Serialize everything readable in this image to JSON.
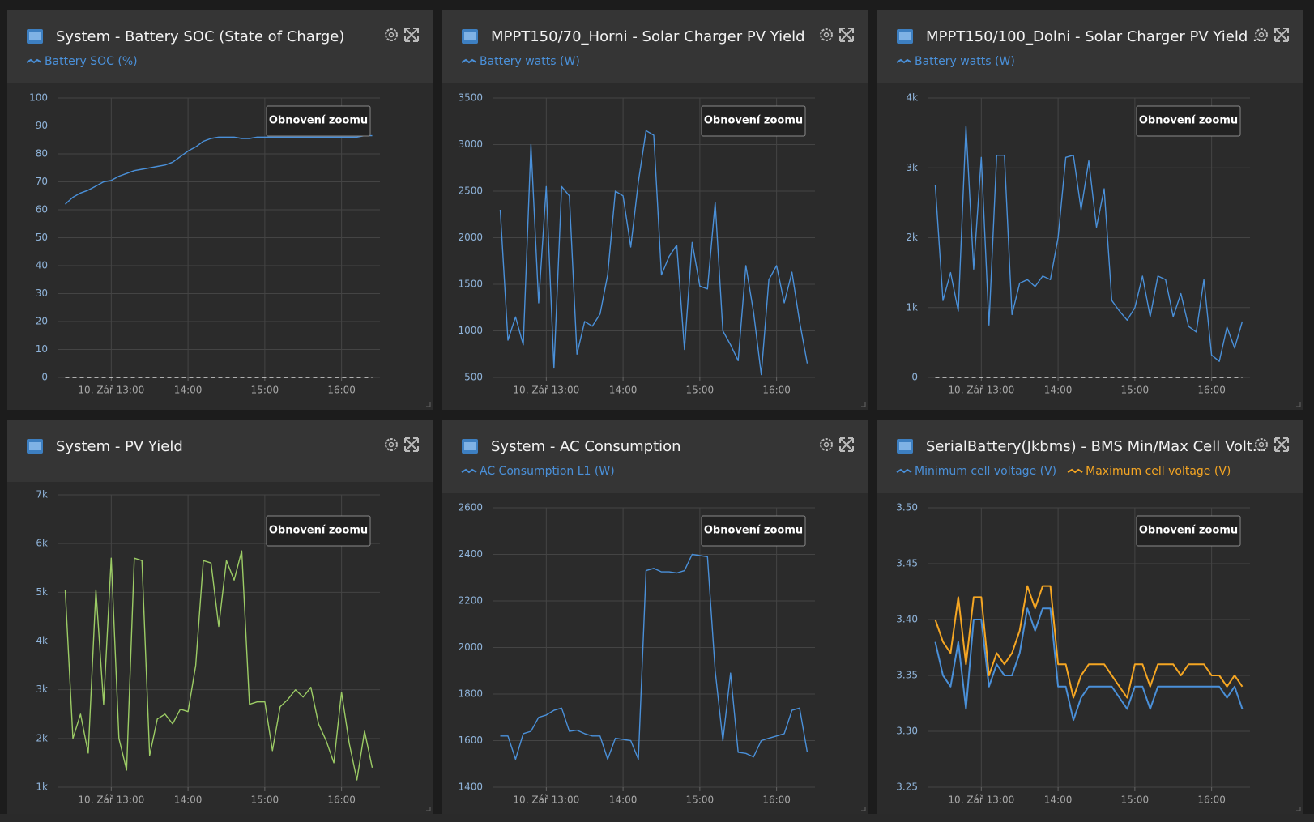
{
  "chart_data": [
    {
      "type": "line",
      "title": "System - Battery SOC (State of Charge)",
      "button": "Obnovení zoomu",
      "zero_line": true,
      "x": [
        12.4,
        12.5,
        12.6,
        12.7,
        12.8,
        12.9,
        13.0,
        13.1,
        13.2,
        13.3,
        13.4,
        13.5,
        13.6,
        13.7,
        13.8,
        13.9,
        14.0,
        14.1,
        14.2,
        14.3,
        14.4,
        14.5,
        14.6,
        14.7,
        14.8,
        14.9,
        15.0,
        15.1,
        15.2,
        15.3,
        15.4,
        15.5,
        15.6,
        15.7,
        15.8,
        15.9,
        16.0,
        16.1,
        16.2,
        16.3,
        16.4
      ],
      "xlim": [
        12.3,
        16.5
      ],
      "xticks": [
        {
          "value": 13,
          "label": "10. Zář 13:00"
        },
        {
          "value": 14,
          "label": "14:00"
        },
        {
          "value": 15,
          "label": "15:00"
        },
        {
          "value": 16,
          "label": "16:00"
        }
      ],
      "ylim": [
        0,
        100
      ],
      "yticks": [
        0,
        10,
        20,
        30,
        40,
        50,
        60,
        70,
        80,
        90,
        100
      ],
      "series": [
        {
          "name": "Battery SOC (%)",
          "color": "#4a90d9",
          "values": [
            62,
            64.5,
            66,
            67,
            68.5,
            70,
            70.5,
            72,
            73,
            74,
            74.5,
            75,
            75.5,
            76,
            77,
            79,
            81,
            82.5,
            84.5,
            85.5,
            86,
            86,
            86,
            85.5,
            85.5,
            86,
            86,
            86,
            86,
            86,
            86,
            86,
            86,
            86,
            86,
            86,
            86,
            86,
            86,
            86.5,
            86.5
          ]
        }
      ]
    },
    {
      "type": "line",
      "title": "MPPT150/70_Horni - Solar Charger PV Yield",
      "button": "Obnovení zoomu",
      "x": [
        12.4,
        12.5,
        12.6,
        12.7,
        12.8,
        12.9,
        13.0,
        13.1,
        13.2,
        13.3,
        13.4,
        13.5,
        13.6,
        13.7,
        13.8,
        13.9,
        14.0,
        14.1,
        14.2,
        14.3,
        14.4,
        14.5,
        14.6,
        14.7,
        14.8,
        14.9,
        15.0,
        15.1,
        15.2,
        15.3,
        15.4,
        15.5,
        15.6,
        15.7,
        15.8,
        15.9,
        16.0,
        16.1,
        16.2,
        16.3,
        16.4
      ],
      "xlim": [
        12.3,
        16.5
      ],
      "xticks": [
        {
          "value": 13,
          "label": "10. Zář 13:00"
        },
        {
          "value": 14,
          "label": "14:00"
        },
        {
          "value": 15,
          "label": "15:00"
        },
        {
          "value": 16,
          "label": "16:00"
        }
      ],
      "ylim": [
        500,
        3500
      ],
      "yticks": [
        500,
        1000,
        1500,
        2000,
        2500,
        3000,
        3500
      ],
      "series": [
        {
          "name": "Battery watts (W)",
          "color": "#4a90d9",
          "values": [
            2300,
            900,
            1150,
            850,
            3000,
            1300,
            2550,
            600,
            2550,
            2450,
            750,
            1100,
            1050,
            1180,
            1600,
            2500,
            2450,
            1900,
            2600,
            3150,
            3100,
            1600,
            1800,
            1920,
            800,
            1950,
            1480,
            1450,
            2380,
            1000,
            850,
            680,
            1700,
            1200,
            530,
            1550,
            1700,
            1300,
            1630,
            1100,
            650
          ]
        }
      ]
    },
    {
      "type": "line",
      "title": "MPPT150/100_Dolni - Solar Charger PV Yield ...",
      "button": "Obnovení zoomu",
      "zero_line": true,
      "x": [
        12.4,
        12.5,
        12.6,
        12.7,
        12.8,
        12.9,
        13.0,
        13.1,
        13.2,
        13.3,
        13.4,
        13.5,
        13.6,
        13.7,
        13.8,
        13.9,
        14.0,
        14.1,
        14.2,
        14.3,
        14.4,
        14.5,
        14.6,
        14.7,
        14.8,
        14.9,
        15.0,
        15.1,
        15.2,
        15.3,
        15.4,
        15.5,
        15.6,
        15.7,
        15.8,
        15.9,
        16.0,
        16.1,
        16.2,
        16.3,
        16.4
      ],
      "xlim": [
        12.3,
        16.5
      ],
      "xticks": [
        {
          "value": 13,
          "label": "10. Zář 13:00"
        },
        {
          "value": 14,
          "label": "14:00"
        },
        {
          "value": 15,
          "label": "15:00"
        },
        {
          "value": 16,
          "label": "16:00"
        }
      ],
      "ylim": [
        0,
        4000
      ],
      "yticks": [
        0,
        {
          "value": 1000,
          "label": "1k"
        },
        {
          "value": 2000,
          "label": "2k"
        },
        {
          "value": 3000,
          "label": "3k"
        },
        {
          "value": 4000,
          "label": "4k"
        }
      ],
      "series": [
        {
          "name": "Battery watts (W)",
          "color": "#4a90d9",
          "values": [
            2750,
            1100,
            1500,
            950,
            3600,
            1550,
            3150,
            750,
            3180,
            3180,
            900,
            1350,
            1400,
            1300,
            1450,
            1400,
            2000,
            3150,
            3180,
            2400,
            3100,
            2150,
            2700,
            1100,
            950,
            820,
            1000,
            1450,
            870,
            1450,
            1400,
            870,
            1200,
            730,
            650,
            1400,
            320,
            230,
            720,
            420,
            800
          ]
        }
      ]
    },
    {
      "type": "line",
      "title": "System - PV Yield",
      "button": "Obnovení zoomu",
      "x": [
        12.4,
        12.5,
        12.6,
        12.7,
        12.8,
        12.9,
        13.0,
        13.1,
        13.2,
        13.3,
        13.4,
        13.5,
        13.6,
        13.7,
        13.8,
        13.9,
        14.0,
        14.1,
        14.2,
        14.3,
        14.4,
        14.5,
        14.6,
        14.7,
        14.8,
        14.9,
        15.0,
        15.1,
        15.2,
        15.3,
        15.4,
        15.5,
        15.6,
        15.7,
        15.8,
        15.9,
        16.0,
        16.1,
        16.2,
        16.3,
        16.4
      ],
      "xlim": [
        12.3,
        16.5
      ],
      "xticks": [
        {
          "value": 13,
          "label": "10. Zář 13:00"
        },
        {
          "value": 14,
          "label": "14:00"
        },
        {
          "value": 15,
          "label": "15:00"
        },
        {
          "value": 16,
          "label": "16:00"
        }
      ],
      "ylim": [
        1000,
        7000
      ],
      "yticks": [
        {
          "value": 1000,
          "label": "1k"
        },
        {
          "value": 2000,
          "label": "2k"
        },
        {
          "value": 3000,
          "label": "3k"
        },
        {
          "value": 4000,
          "label": "4k"
        },
        {
          "value": 5000,
          "label": "5k"
        },
        {
          "value": 6000,
          "label": "6k"
        },
        {
          "value": 7000,
          "label": "7k"
        }
      ],
      "series": [
        {
          "color": "#9ccc65",
          "values": [
            5050,
            2000,
            2500,
            1700,
            5050,
            2700,
            5700,
            2000,
            1350,
            5700,
            5650,
            1650,
            2400,
            2500,
            2300,
            2600,
            2550,
            3500,
            5650,
            5600,
            4300,
            5650,
            5250,
            5850,
            2700,
            2750,
            2750,
            1750,
            2650,
            2800,
            3000,
            2850,
            3050,
            2300,
            1950,
            1500,
            2950,
            1900,
            1150,
            2150,
            1400
          ]
        }
      ]
    },
    {
      "type": "line",
      "title": "System - AC Consumption",
      "button": "Obnovení zoomu",
      "x": [
        12.4,
        12.5,
        12.6,
        12.7,
        12.8,
        12.9,
        13.0,
        13.1,
        13.2,
        13.3,
        13.4,
        13.5,
        13.6,
        13.7,
        13.8,
        13.9,
        14.0,
        14.1,
        14.2,
        14.3,
        14.4,
        14.5,
        14.6,
        14.7,
        14.8,
        14.9,
        15.0,
        15.1,
        15.2,
        15.3,
        15.4,
        15.5,
        15.6,
        15.7,
        15.8,
        15.9,
        16.0,
        16.1,
        16.2,
        16.3,
        16.4
      ],
      "xlim": [
        12.3,
        16.5
      ],
      "xticks": [
        {
          "value": 13,
          "label": "10. Zář 13:00"
        },
        {
          "value": 14,
          "label": "14:00"
        },
        {
          "value": 15,
          "label": "15:00"
        },
        {
          "value": 16,
          "label": "16:00"
        }
      ],
      "ylim": [
        1400,
        2600
      ],
      "yticks": [
        1400,
        1600,
        1800,
        2000,
        2200,
        2400,
        2600
      ],
      "series": [
        {
          "name": "AC Consumption L1 (W)",
          "color": "#4a90d9",
          "values": [
            1620,
            1620,
            1520,
            1630,
            1640,
            1700,
            1710,
            1730,
            1740,
            1640,
            1645,
            1630,
            1620,
            1620,
            1520,
            1610,
            1605,
            1600,
            1520,
            2330,
            2340,
            2325,
            2325,
            2320,
            2330,
            2400,
            2395,
            2390,
            1900,
            1600,
            1890,
            1550,
            1545,
            1530,
            1600,
            1610,
            1620,
            1630,
            1730,
            1740,
            1550
          ]
        }
      ]
    },
    {
      "type": "line",
      "title": "SerialBattery(Jkbms) - BMS Min/Max Cell Volt...",
      "button": "Obnovení zoomu",
      "x": [
        12.4,
        12.5,
        12.6,
        12.7,
        12.8,
        12.9,
        13.0,
        13.1,
        13.2,
        13.3,
        13.4,
        13.5,
        13.6,
        13.7,
        13.8,
        13.9,
        14.0,
        14.1,
        14.2,
        14.3,
        14.4,
        14.5,
        14.6,
        14.7,
        14.8,
        14.9,
        15.0,
        15.1,
        15.2,
        15.3,
        15.4,
        15.5,
        15.6,
        15.7,
        15.8,
        15.9,
        16.0,
        16.1,
        16.2,
        16.3,
        16.4
      ],
      "xlim": [
        12.3,
        16.5
      ],
      "xticks": [
        {
          "value": 13,
          "label": "10. Zář 13:00"
        },
        {
          "value": 14,
          "label": "14:00"
        },
        {
          "value": 15,
          "label": "15:00"
        },
        {
          "value": 16,
          "label": "16:00"
        }
      ],
      "ylim": [
        3.25,
        3.5
      ],
      "yticks": [
        3.25,
        {
          "value": 3.3,
          "label": "3.30"
        },
        3.35,
        {
          "value": 3.4,
          "label": "3.40"
        },
        3.45,
        {
          "value": 3.5,
          "label": "3.50"
        }
      ],
      "series": [
        {
          "name": "Minimum cell voltage (V)",
          "color": "#4a90d9",
          "values": [
            3.38,
            3.35,
            3.34,
            3.38,
            3.32,
            3.4,
            3.4,
            3.34,
            3.36,
            3.35,
            3.35,
            3.37,
            3.41,
            3.39,
            3.41,
            3.41,
            3.34,
            3.34,
            3.31,
            3.33,
            3.34,
            3.34,
            3.34,
            3.34,
            3.33,
            3.32,
            3.34,
            3.34,
            3.32,
            3.34,
            3.34,
            3.34,
            3.34,
            3.34,
            3.34,
            3.34,
            3.34,
            3.34,
            3.33,
            3.34,
            3.32
          ]
        },
        {
          "name": "Maximum cell voltage (V)",
          "color": "#f5a623",
          "values": [
            3.4,
            3.38,
            3.37,
            3.42,
            3.36,
            3.42,
            3.42,
            3.35,
            3.37,
            3.36,
            3.37,
            3.39,
            3.43,
            3.41,
            3.43,
            3.43,
            3.36,
            3.36,
            3.33,
            3.35,
            3.36,
            3.36,
            3.36,
            3.35,
            3.34,
            3.33,
            3.36,
            3.36,
            3.34,
            3.36,
            3.36,
            3.36,
            3.35,
            3.36,
            3.36,
            3.36,
            3.35,
            3.35,
            3.34,
            3.35,
            3.34
          ]
        }
      ]
    }
  ]
}
